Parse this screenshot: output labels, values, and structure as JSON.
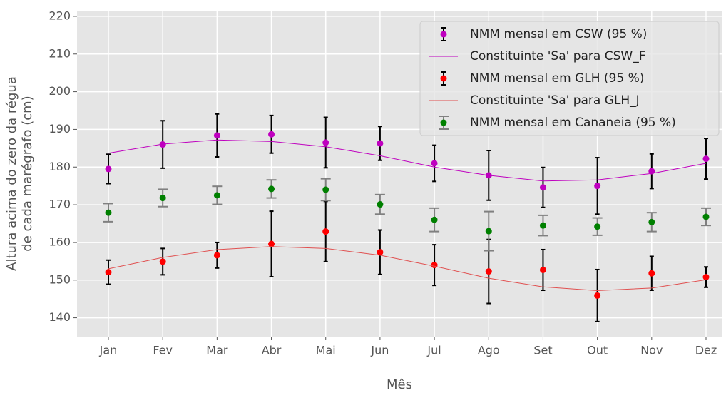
{
  "chart_data": {
    "type": "errorbar",
    "ylabel": [
      "Altura acima do zero da régua",
      "de cada marégrafo (cm)"
    ],
    "xlabel": "Mês",
    "categories": [
      "Jan",
      "Fev",
      "Mar",
      "Abr",
      "Mai",
      "Jun",
      "Jul",
      "Ago",
      "Set",
      "Out",
      "Nov",
      "Dez"
    ],
    "ylim": [
      135,
      221.5
    ],
    "yticks": [
      140,
      150,
      160,
      170,
      180,
      190,
      200,
      210,
      220
    ],
    "grid": true,
    "legend": "upper right",
    "series": [
      {
        "name": "NMM mensal em CSW (95 %)",
        "style": "errorbar",
        "color": "#bf00bf",
        "ecolor": "#000000",
        "capsize": 3,
        "values": [
          179.5,
          186,
          188.4,
          188.7,
          186.5,
          186.3,
          181,
          177.8,
          174.6,
          175,
          178.9,
          182.2
        ],
        "errors": [
          3.9,
          6.3,
          5.7,
          5.0,
          6.7,
          4.5,
          4.8,
          6.6,
          5.3,
          7.5,
          4.6,
          5.4
        ]
      },
      {
        "name": "Constituinte 'Sa' para CSW_F",
        "style": "line",
        "color": "#bf00bf",
        "values": [
          183.7,
          186.1,
          187.2,
          186.8,
          185.4,
          183.0,
          180.0,
          177.8,
          176.3,
          176.6,
          178.3,
          181.0
        ]
      },
      {
        "name": "NMM mensal em GLH (95 %)",
        "style": "errorbar",
        "color": "#ff0000",
        "ecolor": "#000000",
        "capsize": 3,
        "values": [
          152.1,
          154.9,
          156.6,
          159.6,
          162.9,
          157.4,
          154,
          152.3,
          152.7,
          145.9,
          151.8,
          150.8
        ],
        "errors": [
          3.2,
          3.5,
          3.4,
          8.7,
          8.0,
          5.9,
          5.4,
          8.5,
          5.4,
          6.9,
          4.5,
          2.7
        ]
      },
      {
        "name": "Constituinte 'Sa' para GLH_J",
        "style": "line",
        "color": "#e05050",
        "values": [
          153.0,
          156.0,
          158.1,
          158.9,
          158.4,
          156.6,
          153.7,
          150.5,
          148.2,
          147.2,
          147.9,
          150.1
        ]
      },
      {
        "name": "NMM mensal em Cananeia (95 %)",
        "style": "errorbar",
        "color": "#008000",
        "ecolor": "#808080",
        "capsize": 7,
        "values": [
          167.9,
          171.8,
          172.5,
          174.2,
          174,
          170.1,
          166,
          163,
          164.5,
          164.2,
          165.4,
          166.8
        ],
        "errors": [
          2.4,
          2.3,
          2.4,
          2.4,
          2.9,
          2.6,
          3.1,
          5.2,
          2.7,
          2.3,
          2.5,
          2.3
        ]
      }
    ]
  }
}
